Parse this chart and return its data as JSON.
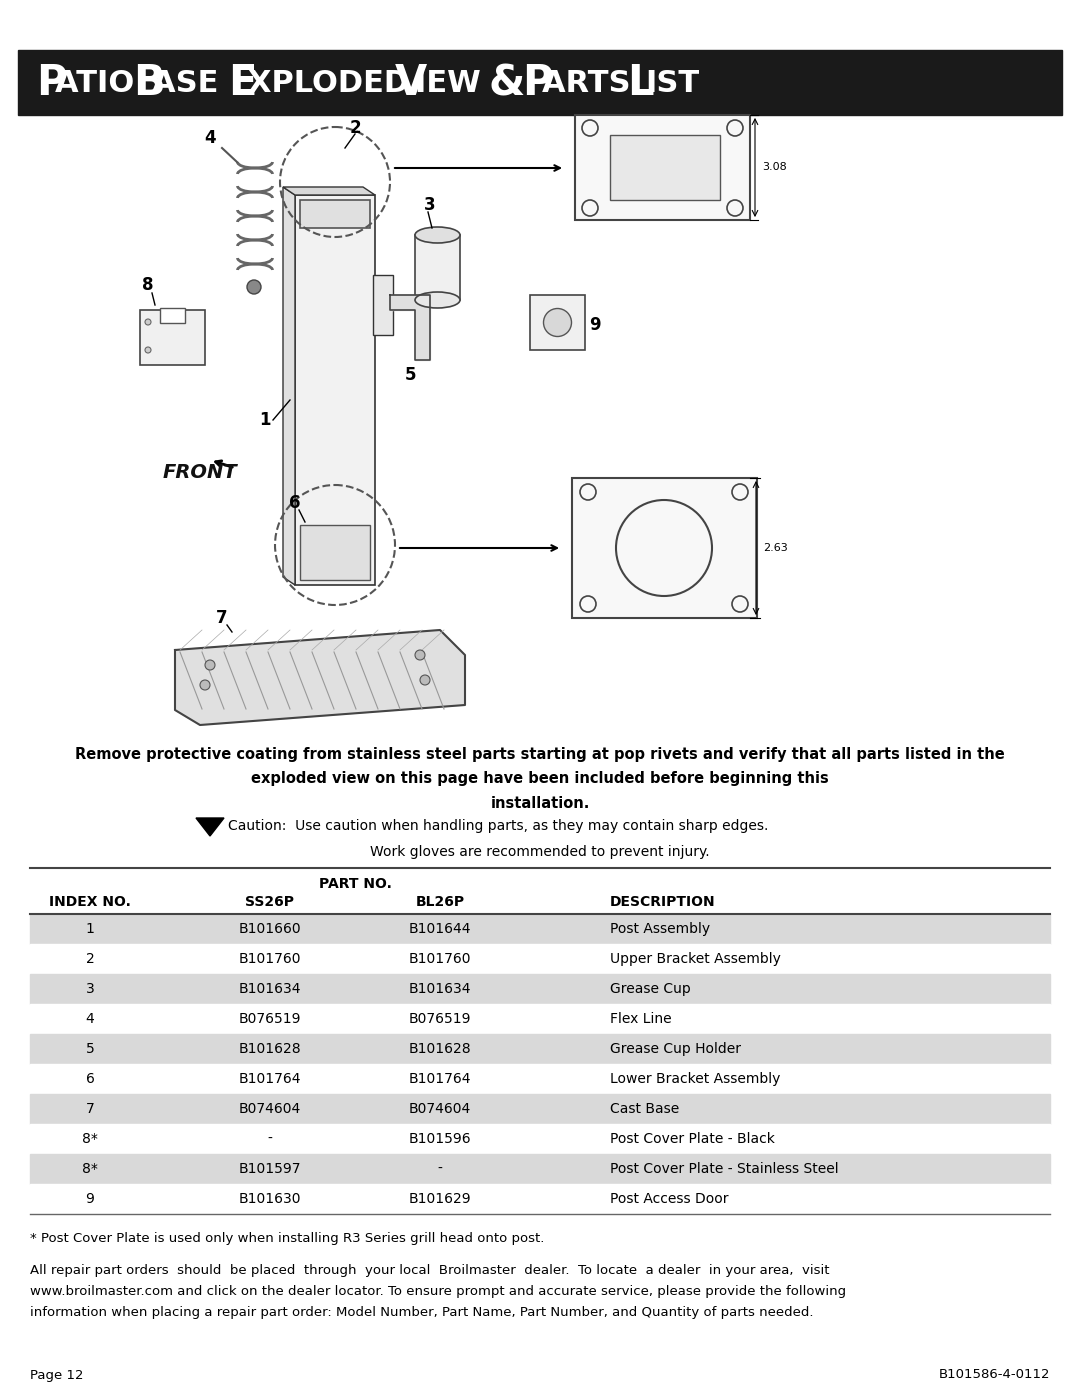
{
  "title": "Patio Base Exploded View & Parts List",
  "title_bg": "#1a1a1a",
  "title_fg": "#ffffff",
  "warning_text1": "Remove protective coating from stainless steel parts starting at pop rivets and verify that all parts listed in the",
  "warning_text2": "exploded view on this page have been included before beginning this",
  "warning_text3": "installation.",
  "caution_text": "Caution:  Use caution when handling parts, as they may contain sharp edges.",
  "workgloves_text": "Work gloves are recommended to prevent injury.",
  "table_header": [
    "INDEX NO.",
    "SS26P",
    "BL26P",
    "DESCRIPTION"
  ],
  "table_subheader_label": "PART NO.",
  "table_rows": [
    [
      "1",
      "B101660",
      "B101644",
      "Post Assembly"
    ],
    [
      "2",
      "B101760",
      "B101760",
      "Upper Bracket Assembly"
    ],
    [
      "3",
      "B101634",
      "B101634",
      "Grease Cup"
    ],
    [
      "4",
      "B076519",
      "B076519",
      "Flex Line"
    ],
    [
      "5",
      "B101628",
      "B101628",
      "Grease Cup Holder"
    ],
    [
      "6",
      "B101764",
      "B101764",
      "Lower Bracket Assembly"
    ],
    [
      "7",
      "B074604",
      "B074604",
      "Cast Base"
    ],
    [
      "8*",
      "-",
      "B101596",
      "Post Cover Plate - Black"
    ],
    [
      "8*",
      "B101597",
      "-",
      "Post Cover Plate - Stainless Steel"
    ],
    [
      "9",
      "B101630",
      "B101629",
      "Post Access Door"
    ]
  ],
  "shaded_rows": [
    0,
    2,
    4,
    6,
    8
  ],
  "row_bg_shaded": "#d9d9d9",
  "row_bg_white": "#ffffff",
  "footnote1": "* Post Cover Plate is used only when installing R3 Series grill head onto post.",
  "footnote2": "All repair part orders  should  be placed  through  your local  Broilmaster  dealer.  To locate  a dealer  in your area,  visit\nwww.broilmaster.com and click on the dealer locator. To ensure prompt and accurate service, please provide the following\ninformation when placing a repair part order: Model Number, Part Name, Part Number, and Quantity of parts needed.",
  "page_label": "Page 12",
  "doc_number": "B101586-4-0112"
}
